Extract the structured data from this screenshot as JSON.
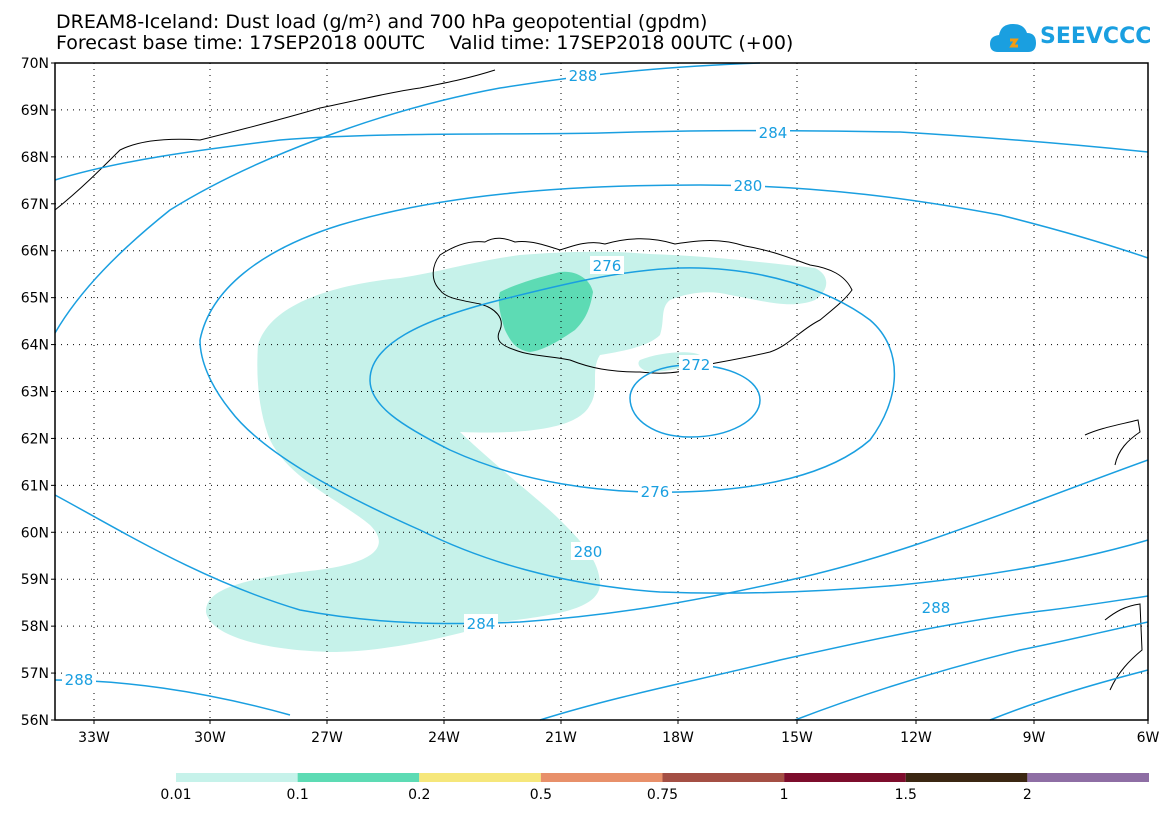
{
  "title": {
    "line1": "DREAM8-Iceland: Dust load (g/m²) and 700 hPa geopotential (gpdm)",
    "line2": "Forecast base time: 17SEP2018 00UTC    Valid time: 17SEP2018 00UTC (+00)"
  },
  "logo": {
    "text": "SEEVCCC"
  },
  "map": {
    "lat_labels": [
      "70N",
      "69N",
      "68N",
      "67N",
      "66N",
      "65N",
      "64N",
      "63N",
      "62N",
      "61N",
      "60N",
      "59N",
      "58N",
      "57N",
      "56N"
    ],
    "lon_labels": [
      "33W",
      "30W",
      "27W",
      "24W",
      "21W",
      "18W",
      "15W",
      "12W",
      "9W",
      "6W"
    ],
    "contour_labels": [
      "288",
      "284",
      "280",
      "276",
      "272",
      "276",
      "280",
      "284",
      "288",
      "288"
    ],
    "contour_color": "#1a9fe0",
    "dust_light_color": "#c6f2ea",
    "dust_mid_color": "#5ddbb4"
  },
  "colorbar": {
    "colors": [
      "#c6f2ea",
      "#5ddbb4",
      "#f6e77b",
      "#e8906a",
      "#a44f44",
      "#7d0d2c",
      "#3b2712",
      "#8e6ea4"
    ],
    "labels": [
      "0.01",
      "0.1",
      "0.2",
      "0.5",
      "0.75",
      "1",
      "1.5",
      "2"
    ]
  }
}
